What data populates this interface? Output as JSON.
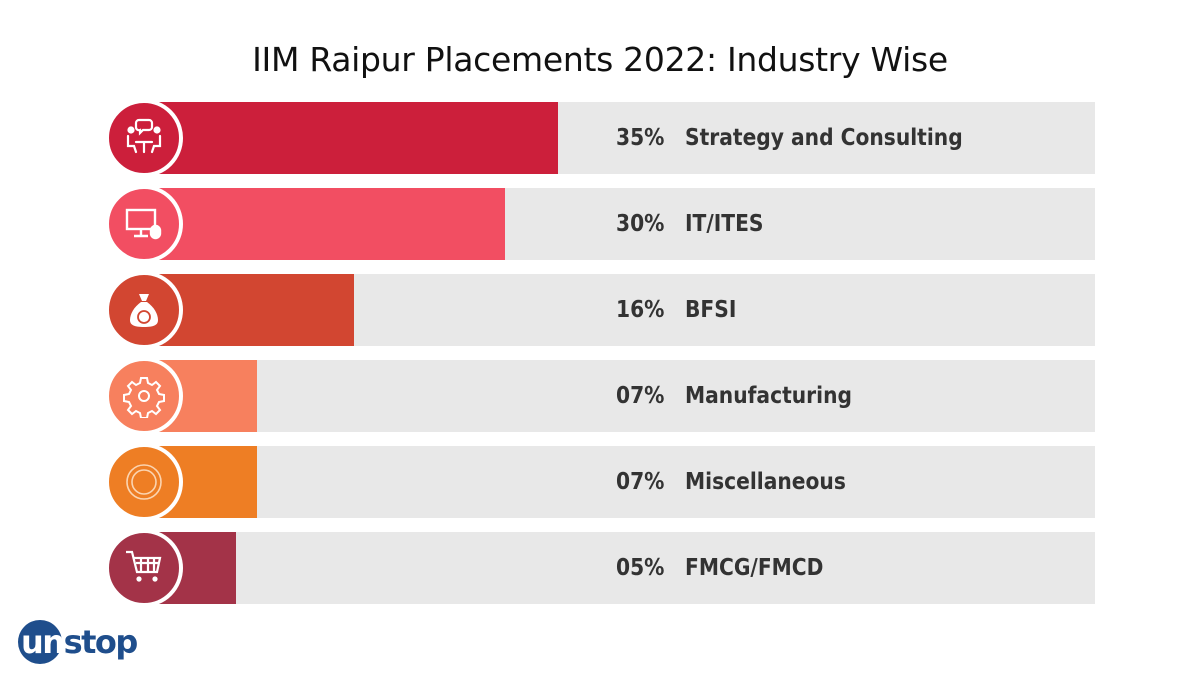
{
  "chart_data": {
    "type": "bar",
    "orientation": "horizontal",
    "title": "IIM Raipur Placements 2022: Industry Wise",
    "categories": [
      "Strategy and Consulting",
      "IT/ITES",
      "BFSI",
      "Manufacturing",
      "Miscellaneous",
      "FMCG/FMCD"
    ],
    "values": [
      35,
      30,
      16,
      7,
      7,
      5
    ],
    "value_labels": [
      "35%",
      "30%",
      "16%",
      "07%",
      "07%",
      "05%"
    ],
    "colors": [
      "#cc1f3b",
      "#f24e62",
      "#d24631",
      "#f7805e",
      "#ee7e24",
      "#a33348"
    ],
    "icons": [
      "meeting-icon",
      "computer-icon",
      "money-bag-icon",
      "gear-icon",
      "circle-icon",
      "shopping-cart-icon"
    ],
    "track_color": "#e8e8e8",
    "unit": "%"
  },
  "logo": {
    "text_a": "un",
    "text_b": "stop",
    "color": "#1f4e8c"
  }
}
